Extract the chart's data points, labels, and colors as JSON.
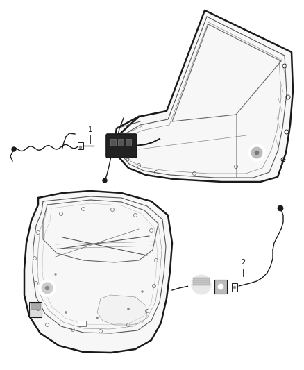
{
  "background_color": "#ffffff",
  "fig_width": 4.38,
  "fig_height": 5.33,
  "dpi": 100,
  "lc": "#1a1a1a",
  "lw_outer": 1.8,
  "lw_inner": 0.8,
  "lw_wire": 1.0,
  "lw_thin": 0.5,
  "label_1": "1",
  "label_2": "2"
}
